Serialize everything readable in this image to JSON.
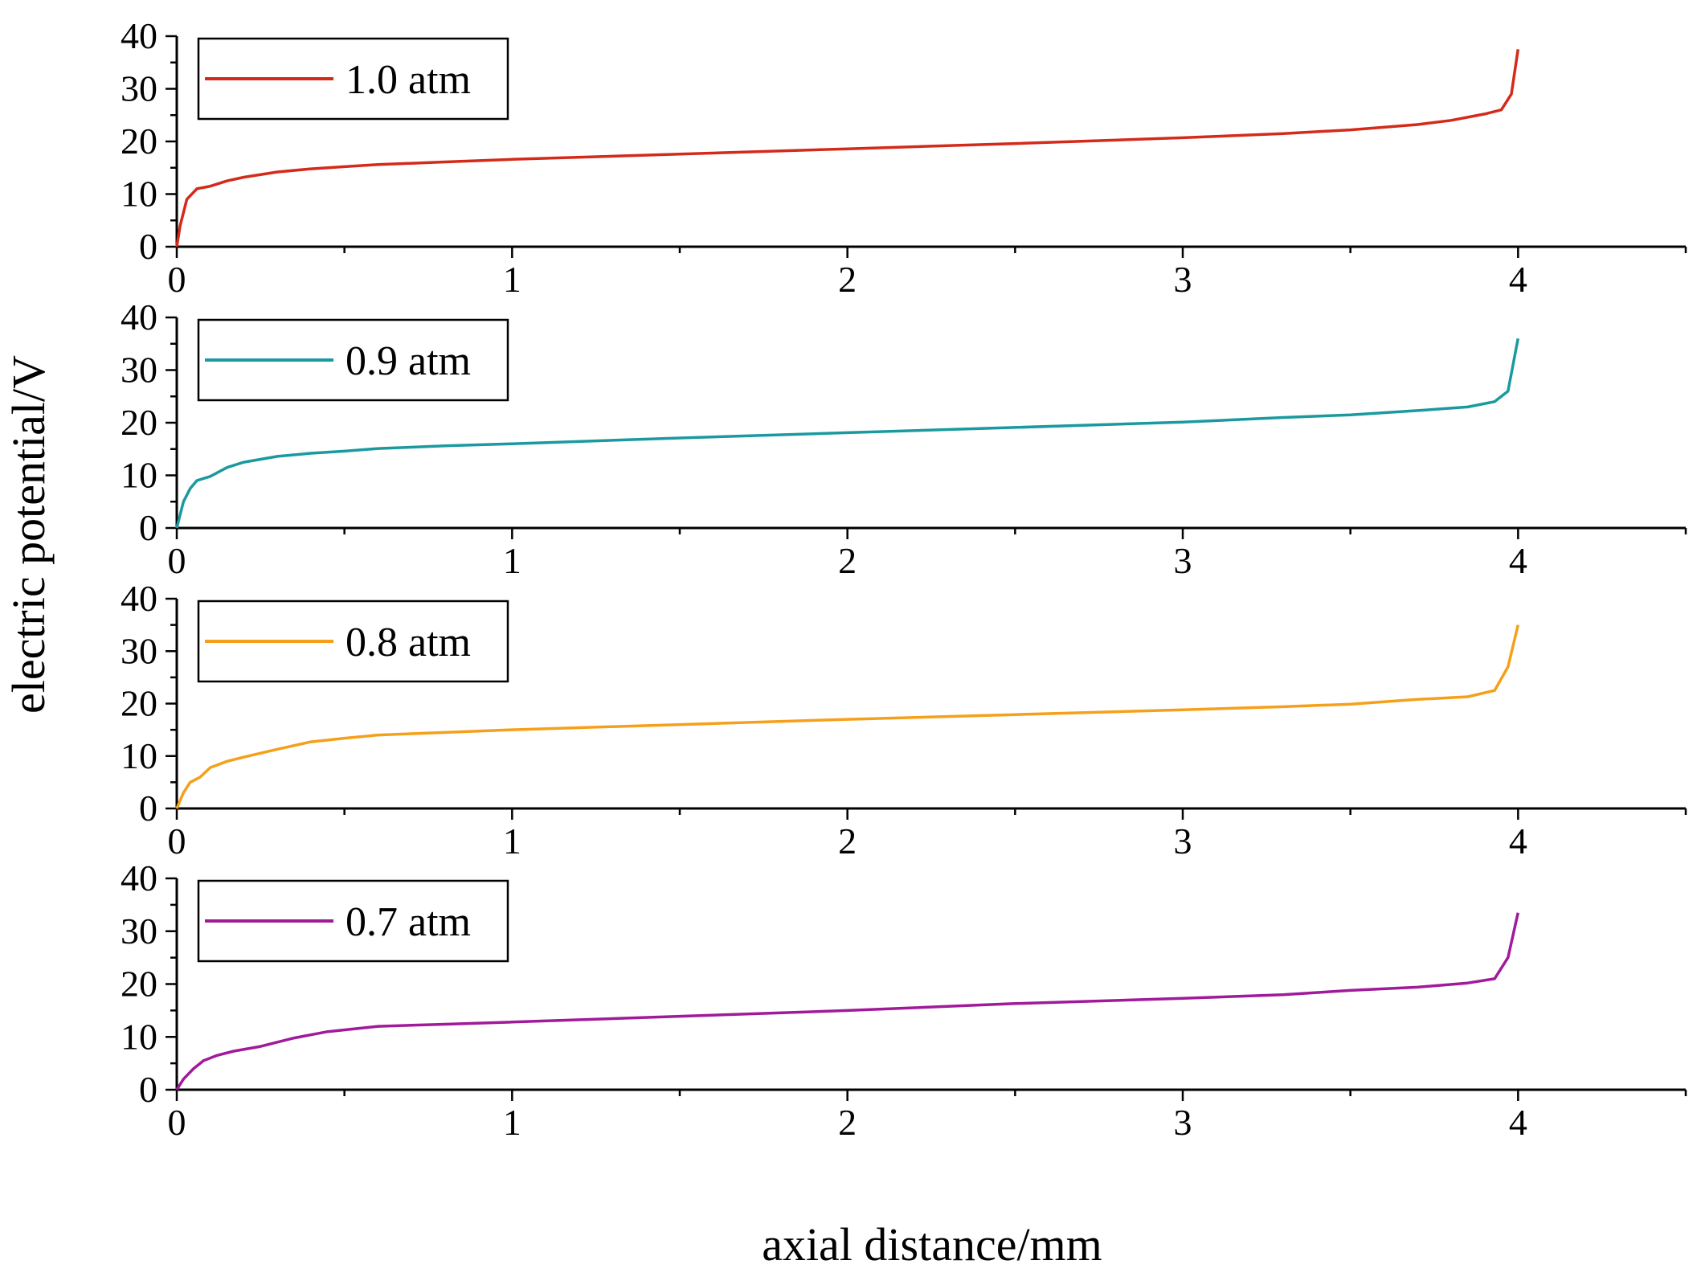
{
  "chart_data": {
    "type": "line",
    "xlabel": "axial distance/mm",
    "ylabel": "electric potential/V",
    "xlim": [
      0,
      4.5
    ],
    "ylim": [
      0,
      40
    ],
    "x_ticks": [
      0,
      1,
      2,
      3,
      4
    ],
    "y_ticks": [
      0,
      10,
      20,
      30,
      40
    ],
    "x_tick_labels": [
      "0",
      "1",
      "2",
      "3",
      "4"
    ],
    "y_tick_labels": [
      "0",
      "10",
      "20",
      "30",
      "40"
    ],
    "legend_position": "top-left",
    "panels": [
      {
        "legend": "1.0 atm",
        "color": "#d42a1a",
        "x": [
          0,
          0.01,
          0.03,
          0.06,
          0.1,
          0.15,
          0.2,
          0.3,
          0.4,
          0.5,
          0.6,
          0.8,
          1.0,
          1.5,
          2.0,
          2.5,
          3.0,
          3.3,
          3.5,
          3.7,
          3.8,
          3.9,
          3.95,
          3.98,
          4.0
        ],
        "y": [
          0,
          4,
          9,
          11,
          11.5,
          12.5,
          13.2,
          14.2,
          14.8,
          15.2,
          15.6,
          16.1,
          16.6,
          17.6,
          18.6,
          19.6,
          20.7,
          21.5,
          22.2,
          23.2,
          24.0,
          25.2,
          26.0,
          29.0,
          37.5
        ]
      },
      {
        "legend": "0.9 atm",
        "color": "#1a9aa0",
        "x": [
          0,
          0.02,
          0.04,
          0.06,
          0.1,
          0.15,
          0.2,
          0.3,
          0.4,
          0.5,
          0.6,
          0.8,
          1.0,
          1.5,
          2.0,
          2.5,
          3.0,
          3.3,
          3.5,
          3.7,
          3.85,
          3.93,
          3.97,
          4.0
        ],
        "y": [
          0,
          5,
          7.5,
          9,
          9.8,
          11.5,
          12.5,
          13.6,
          14.2,
          14.6,
          15.1,
          15.6,
          16.0,
          17.1,
          18.1,
          19.1,
          20.1,
          21.0,
          21.5,
          22.3,
          23.0,
          24.0,
          26.0,
          36.0
        ]
      },
      {
        "legend": "0.8 atm",
        "color": "#f5a01a",
        "x": [
          0,
          0.02,
          0.04,
          0.07,
          0.1,
          0.15,
          0.2,
          0.3,
          0.4,
          0.5,
          0.6,
          0.8,
          1.0,
          1.5,
          2.0,
          2.5,
          3.0,
          3.3,
          3.5,
          3.7,
          3.85,
          3.93,
          3.97,
          4.0
        ],
        "y": [
          0,
          3,
          5,
          6,
          7.8,
          9,
          9.8,
          11.3,
          12.7,
          13.4,
          14.0,
          14.5,
          15.0,
          16.0,
          17.0,
          17.9,
          18.8,
          19.4,
          19.9,
          20.8,
          21.3,
          22.5,
          27.0,
          35.0
        ]
      },
      {
        "legend": "0.7 atm",
        "color": "#a01a9a",
        "x": [
          0,
          0.02,
          0.05,
          0.08,
          0.12,
          0.17,
          0.25,
          0.35,
          0.45,
          0.6,
          0.8,
          1.0,
          1.5,
          2.0,
          2.5,
          3.0,
          3.3,
          3.5,
          3.7,
          3.85,
          3.93,
          3.97,
          4.0
        ],
        "y": [
          0,
          2,
          4,
          5.5,
          6.5,
          7.3,
          8.2,
          9.8,
          11.0,
          12.0,
          12.4,
          12.8,
          13.9,
          15.0,
          16.3,
          17.3,
          18.0,
          18.8,
          19.4,
          20.2,
          21.0,
          25.0,
          33.5
        ]
      }
    ]
  }
}
